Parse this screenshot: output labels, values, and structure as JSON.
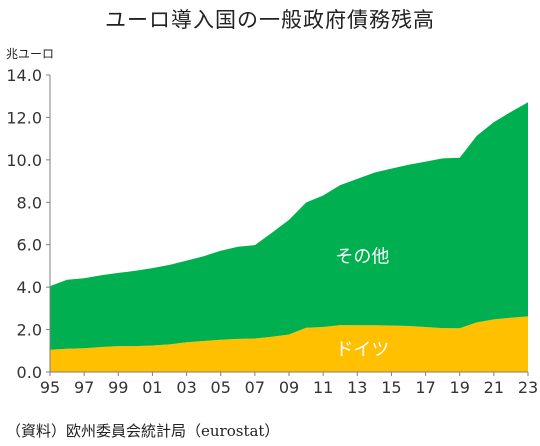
{
  "chart_data": {
    "type": "area",
    "stacked": true,
    "title": "ユーロ導入国の一般政府債務残高",
    "unit_label": "兆ユーロ",
    "xlabel": "",
    "ylabel": "",
    "x": [
      1995,
      1996,
      1997,
      1998,
      1999,
      2000,
      2001,
      2002,
      2003,
      2004,
      2005,
      2006,
      2007,
      2008,
      2009,
      2010,
      2011,
      2012,
      2013,
      2014,
      2015,
      2016,
      2017,
      2018,
      2019,
      2020,
      2021,
      2022,
      2023
    ],
    "x_tick_labels": [
      "95",
      "97",
      "99",
      "01",
      "03",
      "05",
      "07",
      "09",
      "11",
      "13",
      "15",
      "17",
      "19",
      "21",
      "23"
    ],
    "x_tick_years": [
      1995,
      1997,
      1999,
      2001,
      2003,
      2005,
      2007,
      2009,
      2011,
      2013,
      2015,
      2017,
      2019,
      2021,
      2023
    ],
    "ylim": [
      0,
      14
    ],
    "y_ticks": [
      "0.0",
      "2.0",
      "4.0",
      "6.0",
      "8.0",
      "10.0",
      "12.0",
      "14.0"
    ],
    "grid": false,
    "series": [
      {
        "name": "ドイツ",
        "color": "#FFC000",
        "values": [
          1.05,
          1.1,
          1.12,
          1.18,
          1.22,
          1.22,
          1.25,
          1.3,
          1.4,
          1.46,
          1.52,
          1.56,
          1.58,
          1.66,
          1.77,
          2.09,
          2.12,
          2.21,
          2.2,
          2.2,
          2.19,
          2.17,
          2.12,
          2.07,
          2.06,
          2.34,
          2.48,
          2.56,
          2.62
        ]
      },
      {
        "name": "その他",
        "color": "#00B050",
        "values": [
          3.0,
          3.25,
          3.3,
          3.38,
          3.45,
          3.55,
          3.65,
          3.75,
          3.85,
          4.0,
          4.2,
          4.34,
          4.4,
          4.9,
          5.4,
          5.9,
          6.2,
          6.6,
          6.9,
          7.2,
          7.4,
          7.6,
          7.8,
          8.0,
          8.04,
          8.8,
          9.3,
          9.7,
          10.1
        ]
      }
    ]
  },
  "source": "（資料）欧州委員会統計局（eurostat）"
}
